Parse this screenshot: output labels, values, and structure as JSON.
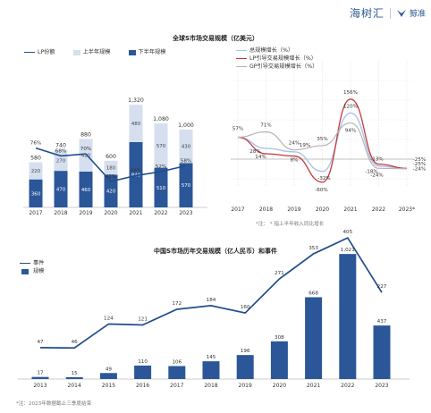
{
  "logos": {
    "logo_left": "海树汇",
    "logo_right": "鲸准"
  },
  "titles": {
    "top": "全球S市场交易规模（亿美元）",
    "bottom": "中国S市场历年交易规模（亿人民币）和事件"
  },
  "notes": {
    "top_right": "*注：  * 指上半年收入同比增长",
    "bottom": "*注：2023年数据截止三季度结束"
  },
  "colors": {
    "dark_blue": "#2b5799",
    "light_blue": "#d5dfef",
    "line_blue": "#1f4e8c",
    "total": "#a9c4ea",
    "lp": "#c63a3a",
    "gp": "#b4b4b4"
  },
  "chart_data": [
    {
      "type": "bar",
      "categories": [
        "2017",
        "2018",
        "2019",
        "2020",
        "2021",
        "2022",
        "2023"
      ],
      "totals": [
        "580",
        "740",
        "880",
        "600",
        "1,320",
        "1,080",
        "1,000"
      ],
      "series": [
        {
          "name": "上半年规模",
          "values": [
            220,
            270,
            420,
            180,
            480,
            570,
            430
          ]
        },
        {
          "name": "下半年规模",
          "values": [
            360,
            470,
            460,
            420,
            840,
            510,
            570
          ]
        },
        {
          "name": "LP份额",
          "values": [
            76,
            68,
            70,
            42,
            48,
            52,
            58
          ],
          "labels": [
            "76%",
            "68%",
            "70%",
            "42%",
            "48%",
            "52%",
            "58%"
          ]
        }
      ],
      "ylim": [
        0,
        1500
      ]
    },
    {
      "type": "line",
      "categories": [
        "2017",
        "2018",
        "2019",
        "2020",
        "2021",
        "2022",
        "2023*"
      ],
      "series": [
        {
          "name": "总规模增长（%）",
          "values": [
            57,
            28,
            19,
            -32,
            120,
            -18,
            -25
          ],
          "labels": [
            "57%",
            "28%",
            "19%",
            "-32%",
            "120%",
            "-18%",
            "-25%"
          ]
        },
        {
          "name": "LP引导交易规模增长（%）",
          "values": [
            57,
            14,
            8,
            -60,
            156,
            -13,
            -24
          ],
          "labels": [
            "",
            "14%",
            "8%",
            "-60%",
            "156%",
            "-13%",
            "-24%"
          ]
        },
        {
          "name": "GP引导交易规模增长（%）",
          "values": [
            57,
            71,
            24,
            35,
            94,
            -24,
            -25
          ],
          "labels": [
            "",
            "71%",
            "24%",
            "35%",
            "94%",
            "-24%",
            "-25%"
          ]
        }
      ],
      "ylim": [
        -80,
        180
      ],
      "grid": true
    },
    {
      "type": "bar",
      "categories": [
        "2013",
        "2014",
        "2015",
        "2016",
        "2017",
        "2018",
        "2019",
        "2020",
        "2021",
        "2022",
        "2023"
      ],
      "series": [
        {
          "name": "规模",
          "values": [
            17,
            15,
            49,
            110,
            106,
            145,
            196,
            308,
            668,
            1021,
            437
          ],
          "labels": [
            "17",
            "15",
            "49",
            "110",
            "106",
            "145",
            "196",
            "308",
            "668",
            "1,021",
            "437"
          ]
        },
        {
          "name": "事件",
          "values": [
            47,
            46,
            124,
            121,
            172,
            184,
            160,
            271,
            353,
            405,
            227
          ]
        }
      ],
      "ylim": [
        0,
        1100
      ]
    }
  ]
}
